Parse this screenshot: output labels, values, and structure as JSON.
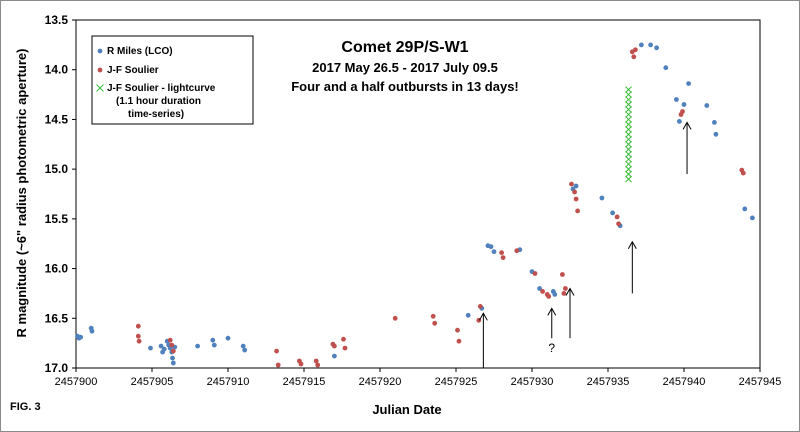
{
  "figure_label": "FIG. 3",
  "colors": {
    "r_miles": "#4f81bd",
    "js_soulier": "#c0504d",
    "lightcurve": "#3dbb3d"
  },
  "chart_data": {
    "type": "scatter",
    "title": "Comet 29P/S-W1",
    "subtitle_lines": [
      "2017 May 26.5 - 2017 July 09.5",
      "Four and a half outbursts in 13 days!"
    ],
    "xlabel": "Julian Date",
    "ylabel": "R magnitude  (~6\" radius photometric aperture)",
    "xlim": [
      2457900,
      2457945
    ],
    "ylim": [
      17.0,
      13.5
    ],
    "y_inverted": true,
    "x_ticks": [
      "2457900",
      "2457905",
      "2457910",
      "2457915",
      "2457920",
      "2457925",
      "2457930",
      "2457935",
      "2457940",
      "2457945"
    ],
    "y_ticks": [
      "13.5",
      "14.0",
      "14.5",
      "15.0",
      "15.5",
      "16.0",
      "16.5",
      "17.0"
    ],
    "grid": false,
    "legend_position": "top-left",
    "legend": [
      {
        "label": "R Miles (LCO)",
        "marker": "dot"
      },
      {
        "label": "J-F Soulier",
        "marker": "dot"
      },
      {
        "label": "J-F Soulier - lightcurve",
        "marker": "x"
      },
      {
        "label": "(1.1 hour duration",
        "marker": "none"
      },
      {
        "label": "time-series)",
        "marker": "none"
      }
    ],
    "series": [
      {
        "name": "R Miles (LCO)",
        "points": [
          [
            2457900.1,
            16.68
          ],
          [
            2457900.2,
            16.7
          ],
          [
            2457900.3,
            16.69
          ],
          [
            2457901.0,
            16.6
          ],
          [
            2457901.05,
            16.63
          ],
          [
            2457904.9,
            16.8
          ],
          [
            2457905.6,
            16.78
          ],
          [
            2457905.7,
            16.84
          ],
          [
            2457905.8,
            16.81
          ],
          [
            2457906.0,
            16.73
          ],
          [
            2457906.1,
            16.77
          ],
          [
            2457906.2,
            16.8
          ],
          [
            2457906.3,
            16.84
          ],
          [
            2457906.35,
            16.9
          ],
          [
            2457906.4,
            16.95
          ],
          [
            2457906.5,
            16.79
          ],
          [
            2457908.0,
            16.78
          ],
          [
            2457909.0,
            16.72
          ],
          [
            2457909.1,
            16.77
          ],
          [
            2457910.0,
            16.7
          ],
          [
            2457911.0,
            16.78
          ],
          [
            2457911.1,
            16.82
          ],
          [
            2457917.0,
            16.88
          ],
          [
            2457925.8,
            16.47
          ],
          [
            2457926.7,
            16.4
          ],
          [
            2457927.1,
            15.77
          ],
          [
            2457927.3,
            15.78
          ],
          [
            2457927.5,
            15.83
          ],
          [
            2457929.2,
            15.81
          ],
          [
            2457930.0,
            16.03
          ],
          [
            2457930.5,
            16.2
          ],
          [
            2457931.4,
            16.23
          ],
          [
            2457931.5,
            16.26
          ],
          [
            2457932.7,
            15.2
          ],
          [
            2457932.9,
            15.17
          ],
          [
            2457934.6,
            15.29
          ],
          [
            2457935.3,
            15.44
          ],
          [
            2457935.8,
            15.57
          ],
          [
            2457937.2,
            13.75
          ],
          [
            2457937.8,
            13.75
          ],
          [
            2457938.2,
            13.78
          ],
          [
            2457938.8,
            13.98
          ],
          [
            2457939.5,
            14.3
          ],
          [
            2457939.7,
            14.52
          ],
          [
            2457940.0,
            14.35
          ],
          [
            2457940.3,
            14.14
          ],
          [
            2457941.5,
            14.36
          ],
          [
            2457942.0,
            14.53
          ],
          [
            2457942.1,
            14.65
          ],
          [
            2457944.0,
            15.4
          ],
          [
            2457944.5,
            15.49
          ]
        ]
      },
      {
        "name": "J-F Soulier",
        "points": [
          [
            2457904.1,
            16.58
          ],
          [
            2457904.1,
            16.68
          ],
          [
            2457904.15,
            16.73
          ],
          [
            2457906.2,
            16.72
          ],
          [
            2457906.3,
            16.77
          ],
          [
            2457906.4,
            16.83
          ],
          [
            2457913.2,
            16.83
          ],
          [
            2457913.3,
            16.97
          ],
          [
            2457914.7,
            16.93
          ],
          [
            2457914.8,
            16.96
          ],
          [
            2457915.8,
            16.93
          ],
          [
            2457915.9,
            16.97
          ],
          [
            2457916.9,
            16.76
          ],
          [
            2457917.0,
            16.78
          ],
          [
            2457917.6,
            16.71
          ],
          [
            2457917.7,
            16.8
          ],
          [
            2457921.0,
            16.5
          ],
          [
            2457923.5,
            16.48
          ],
          [
            2457923.6,
            16.55
          ],
          [
            2457925.1,
            16.62
          ],
          [
            2457925.2,
            16.73
          ],
          [
            2457926.5,
            16.52
          ],
          [
            2457926.6,
            16.38
          ],
          [
            2457928.0,
            15.84
          ],
          [
            2457928.1,
            15.89
          ],
          [
            2457929.0,
            15.82
          ],
          [
            2457930.2,
            16.05
          ],
          [
            2457930.7,
            16.23
          ],
          [
            2457931.0,
            16.26
          ],
          [
            2457931.1,
            16.28
          ],
          [
            2457932.0,
            16.06
          ],
          [
            2457932.1,
            16.25
          ],
          [
            2457932.2,
            16.2
          ],
          [
            2457932.6,
            15.15
          ],
          [
            2457932.8,
            15.23
          ],
          [
            2457932.9,
            15.3
          ],
          [
            2457933.0,
            15.42
          ],
          [
            2457935.6,
            15.48
          ],
          [
            2457935.7,
            15.55
          ],
          [
            2457936.6,
            13.82
          ],
          [
            2457936.7,
            13.87
          ],
          [
            2457936.8,
            13.8
          ],
          [
            2457939.8,
            14.45
          ],
          [
            2457939.9,
            14.42
          ],
          [
            2457943.8,
            15.01
          ],
          [
            2457943.9,
            15.04
          ]
        ]
      },
      {
        "name": "J-F Soulier - lightcurve",
        "x": 2457936.35,
        "y_values": [
          14.2,
          14.25,
          14.3,
          14.35,
          14.4,
          14.45,
          14.5,
          14.55,
          14.6,
          14.65,
          14.7,
          14.75,
          14.8,
          14.85,
          14.9,
          14.95,
          15.0,
          15.05,
          15.1
        ]
      }
    ],
    "annotations": [
      {
        "type": "arrow",
        "x": 2457926.8,
        "y_from": 17.0,
        "y_to": 16.45
      },
      {
        "type": "arrow",
        "x": 2457931.3,
        "y_from": 16.7,
        "y_to": 16.4
      },
      {
        "type": "text",
        "text": "?",
        "x": 2457931.3,
        "y": 16.8
      },
      {
        "type": "arrow",
        "x": 2457932.5,
        "y_from": 16.7,
        "y_to": 16.2
      },
      {
        "type": "arrow",
        "x": 2457936.6,
        "y_from": 16.25,
        "y_to": 15.73
      },
      {
        "type": "arrow",
        "x": 2457940.2,
        "y_from": 15.05,
        "y_to": 14.53
      }
    ]
  }
}
